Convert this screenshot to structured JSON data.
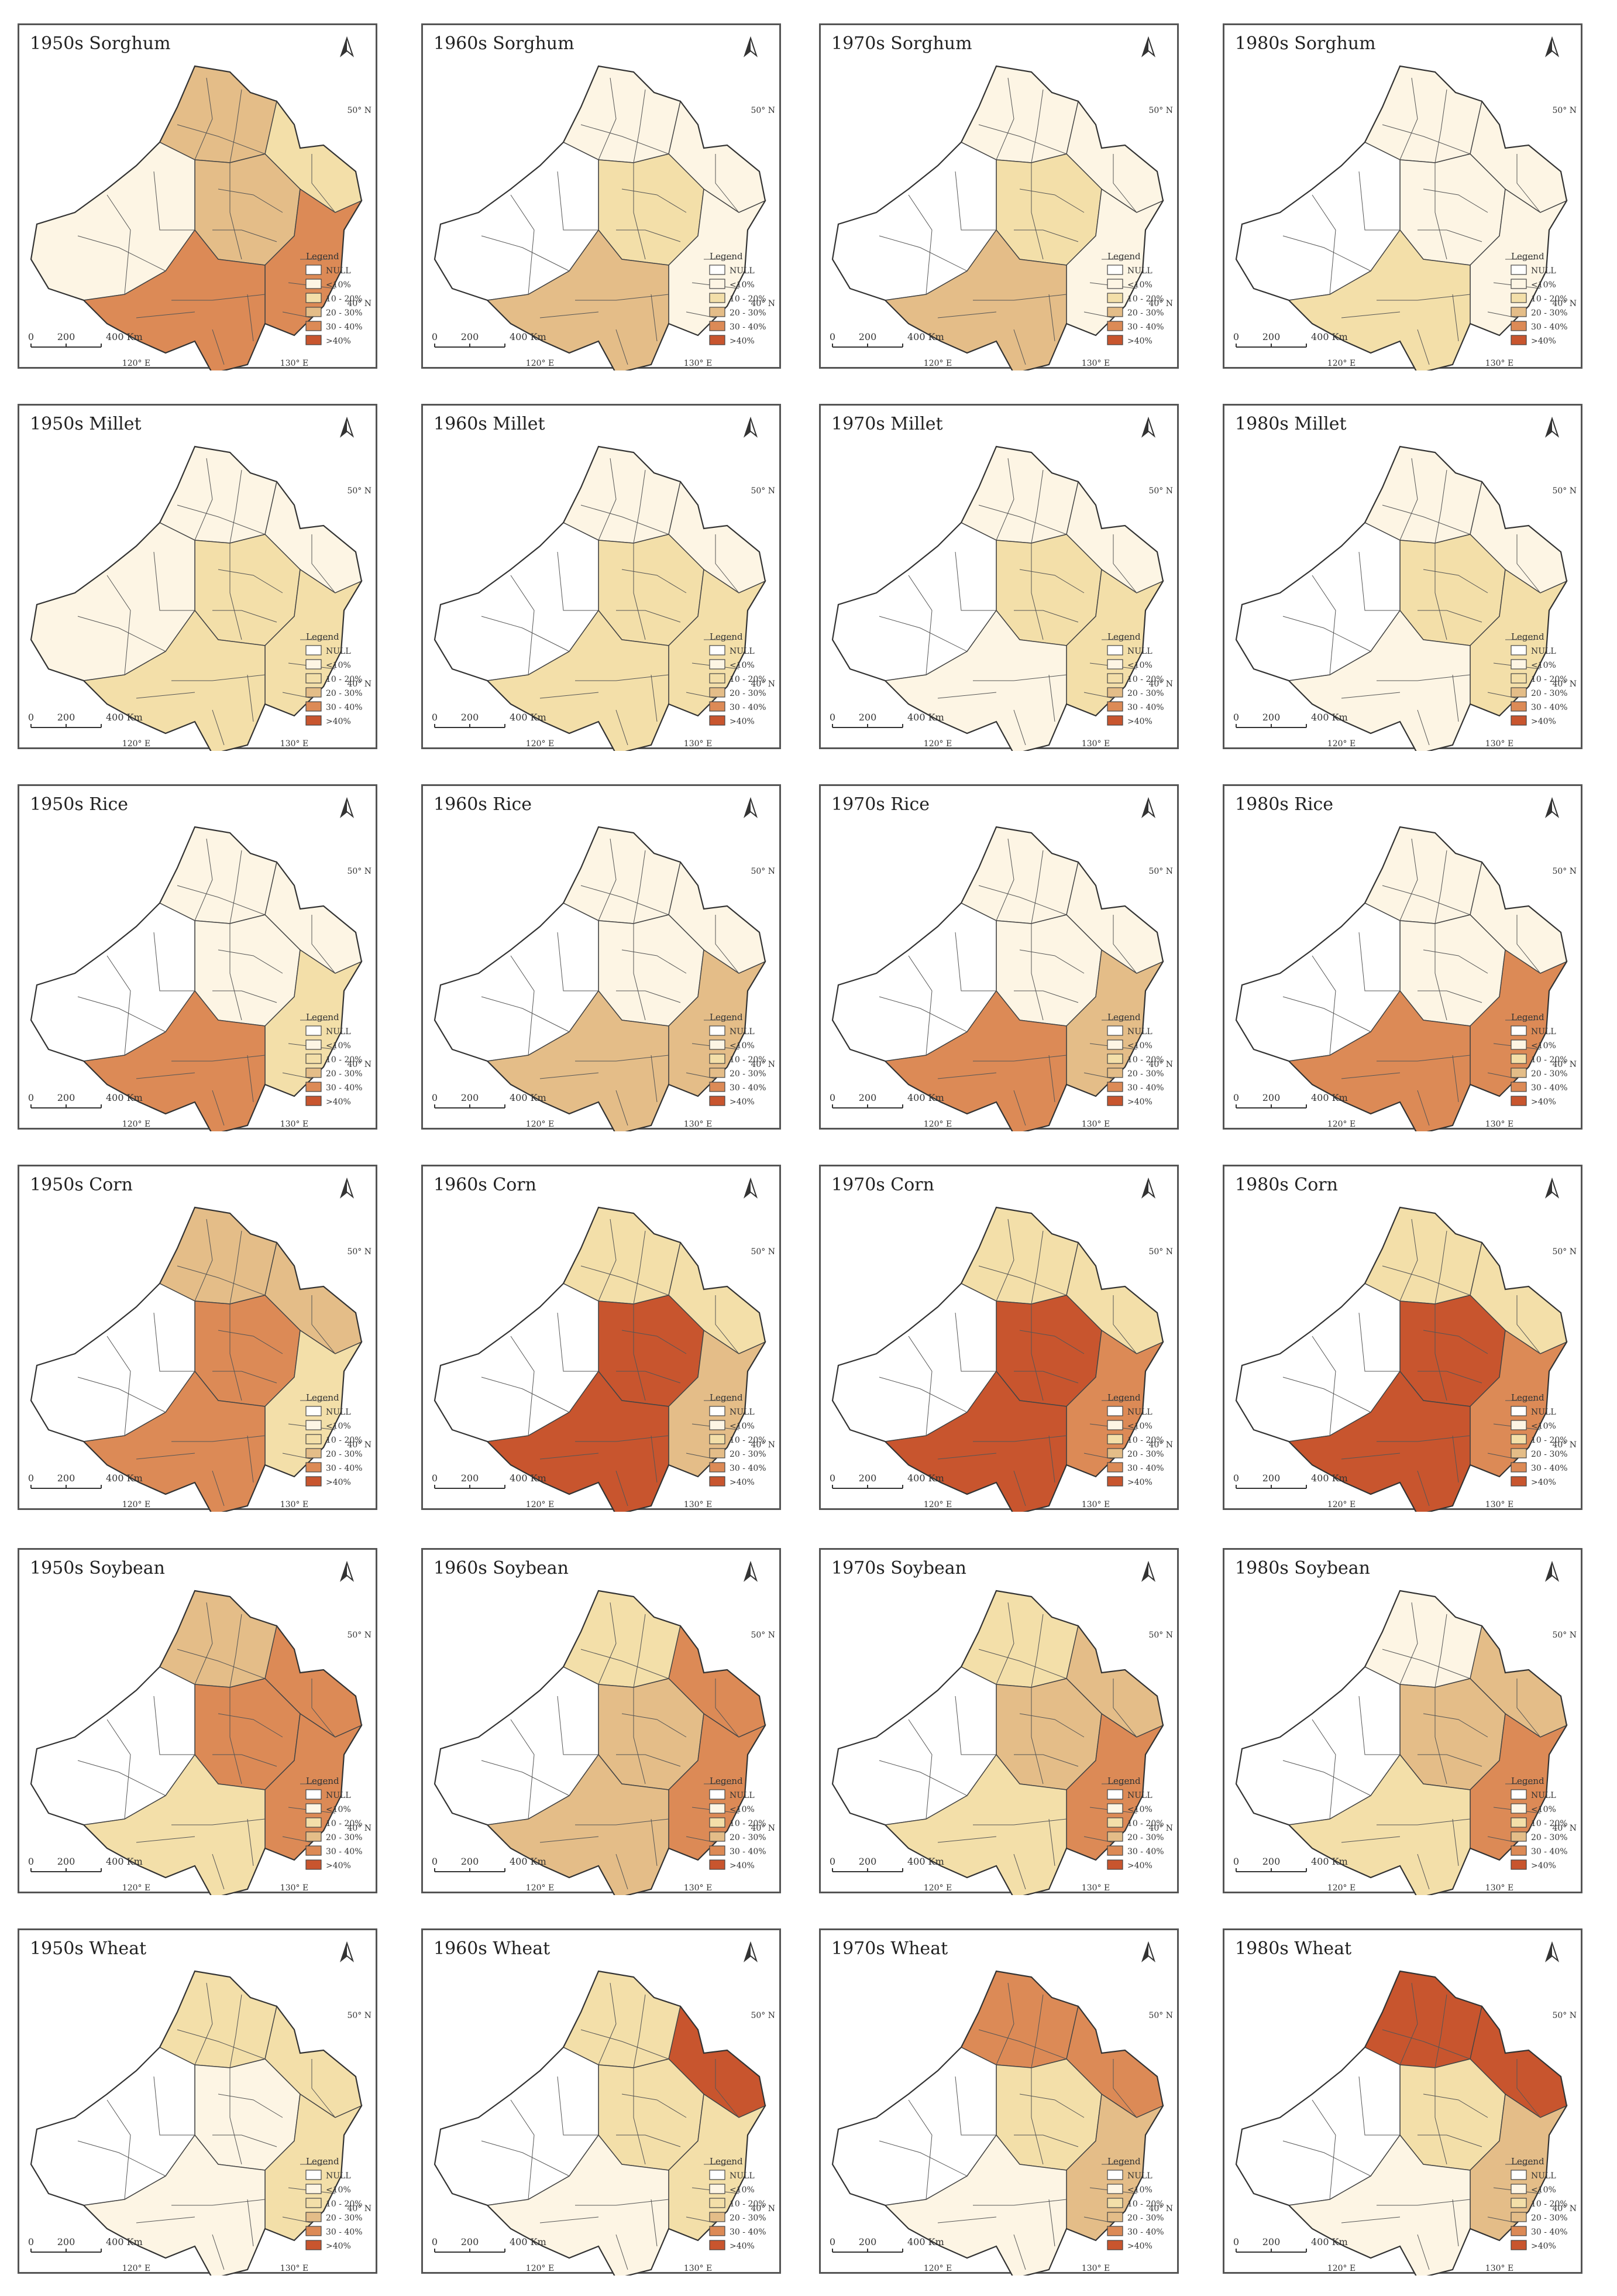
{
  "legend": {
    "title": "Legend",
    "classes": [
      {
        "label": "NULL",
        "color": "#ffffff"
      },
      {
        "label": "<10%",
        "color": "#fdf5e4"
      },
      {
        "label": "10 - 20%",
        "color": "#f3dfa9"
      },
      {
        "label": "20 - 30%",
        "color": "#e4bd88"
      },
      {
        "label": "30 - 40%",
        "color": "#dc8a56"
      },
      {
        "label": ">40%",
        "color": "#c8552e"
      }
    ]
  },
  "scale_bar": {
    "labels": [
      "0",
      "200",
      "400 Km"
    ]
  },
  "axis_labels": {
    "lat_top": "50° N",
    "lat_bottom": "40° N",
    "lon_left": "120° E",
    "lon_right": "130° E"
  },
  "north_arrow": "north-arrow-icon",
  "panels": [
    {
      "title": "1950s Sorghum",
      "crop": "Sorghum",
      "decade": "1950s"
    },
    {
      "title": "1960s Sorghum",
      "crop": "Sorghum",
      "decade": "1960s"
    },
    {
      "title": "1970s Sorghum",
      "crop": "Sorghum",
      "decade": "1970s"
    },
    {
      "title": "1980s Sorghum",
      "crop": "Sorghum",
      "decade": "1980s"
    },
    {
      "title": "1950s Millet",
      "crop": "Millet",
      "decade": "1950s"
    },
    {
      "title": "1960s Millet",
      "crop": "Millet",
      "decade": "1960s"
    },
    {
      "title": "1970s Millet",
      "crop": "Millet",
      "decade": "1970s"
    },
    {
      "title": "1980s Millet",
      "crop": "Millet",
      "decade": "1980s"
    },
    {
      "title": "1950s Rice",
      "crop": "Rice",
      "decade": "1950s"
    },
    {
      "title": "1960s Rice",
      "crop": "Rice",
      "decade": "1960s"
    },
    {
      "title": "1970s Rice",
      "crop": "Rice",
      "decade": "1970s"
    },
    {
      "title": "1980s Rice",
      "crop": "Rice",
      "decade": "1980s"
    },
    {
      "title": "1950s Corn",
      "crop": "Corn",
      "decade": "1950s"
    },
    {
      "title": "1960s Corn",
      "crop": "Corn",
      "decade": "1960s"
    },
    {
      "title": "1970s Corn",
      "crop": "Corn",
      "decade": "1970s"
    },
    {
      "title": "1980s Corn",
      "crop": "Corn",
      "decade": "1980s"
    },
    {
      "title": "1950s Soybean",
      "crop": "Soybean",
      "decade": "1950s"
    },
    {
      "title": "1960s Soybean",
      "crop": "Soybean",
      "decade": "1960s"
    },
    {
      "title": "1970s Soybean",
      "crop": "Soybean",
      "decade": "1970s"
    },
    {
      "title": "1980s Soybean",
      "crop": "Soybean",
      "decade": "1980s"
    },
    {
      "title": "1950s Wheat",
      "crop": "Wheat",
      "decade": "1950s"
    },
    {
      "title": "1960s Wheat",
      "crop": "Wheat",
      "decade": "1960s"
    },
    {
      "title": "1970s Wheat",
      "crop": "Wheat",
      "decade": "1970s"
    },
    {
      "title": "1980s Wheat",
      "crop": "Wheat",
      "decade": "1980s"
    }
  ]
}
